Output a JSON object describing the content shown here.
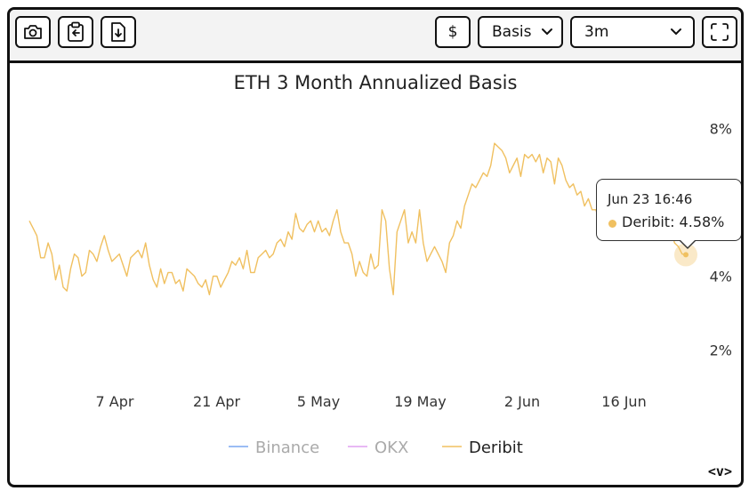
{
  "toolbar": {
    "currency_label": "$",
    "metric_select": "Basis",
    "range_select": "3m"
  },
  "chart_data": {
    "type": "line",
    "title": "ETH 3 Month Annualized Basis",
    "xlabel": "",
    "ylabel": "",
    "x_tick_labels": [
      "7 Apr",
      "21 Apr",
      "5 May",
      "19 May",
      "2 Jun",
      "16 Jun"
    ],
    "y_tick_labels": [
      "8%",
      "4%",
      "2%"
    ],
    "ylim": [
      1.0,
      9.0
    ],
    "series": [
      {
        "name": "Binance",
        "color": "#7aa7f0",
        "visible": false,
        "values": []
      },
      {
        "name": "OKX",
        "color": "#e0a0f0",
        "visible": false,
        "values": []
      },
      {
        "name": "Deribit",
        "color": "#f0c060",
        "visible": true,
        "values": [
          5.5,
          5.3,
          5.1,
          4.5,
          4.5,
          4.9,
          4.6,
          3.9,
          4.3,
          3.7,
          3.6,
          4.2,
          4.6,
          4.5,
          4.0,
          4.1,
          4.7,
          4.6,
          4.4,
          4.8,
          5.1,
          4.7,
          4.4,
          4.5,
          4.6,
          4.3,
          4.0,
          4.5,
          4.6,
          4.7,
          4.5,
          4.9,
          4.3,
          3.9,
          3.7,
          4.2,
          3.8,
          4.1,
          4.1,
          3.8,
          3.9,
          3.6,
          4.2,
          4.1,
          4.0,
          3.8,
          3.7,
          3.9,
          3.5,
          4.0,
          4.0,
          3.7,
          3.9,
          4.1,
          4.4,
          4.3,
          4.5,
          4.2,
          4.7,
          4.1,
          4.1,
          4.5,
          4.6,
          4.7,
          4.5,
          4.6,
          4.9,
          5.0,
          4.8,
          5.2,
          5.0,
          5.7,
          5.3,
          5.2,
          5.4,
          5.5,
          5.2,
          5.5,
          5.2,
          5.3,
          5.1,
          5.5,
          5.8,
          5.2,
          4.9,
          4.9,
          4.6,
          4.0,
          4.4,
          4.1,
          4.0,
          4.6,
          4.2,
          4.3,
          5.8,
          5.5,
          4.2,
          3.5,
          5.2,
          5.5,
          5.8,
          4.9,
          5.2,
          4.9,
          5.8,
          4.9,
          4.4,
          4.6,
          4.8,
          4.6,
          4.4,
          4.1,
          4.9,
          5.1,
          5.5,
          5.3,
          5.9,
          6.2,
          6.5,
          6.4,
          6.6,
          6.8,
          6.7,
          7.0,
          7.6,
          7.5,
          7.4,
          7.2,
          6.8,
          7.0,
          7.2,
          6.7,
          7.3,
          7.2,
          7.3,
          7.1,
          7.3,
          6.8,
          7.2,
          7.1,
          6.5,
          7.2,
          7.0,
          6.6,
          6.4,
          6.5,
          6.2,
          6.3,
          5.9,
          6.1,
          5.8,
          5.8,
          5.5,
          5.8,
          6.0,
          5.8,
          5.9,
          6.0,
          6.2,
          6.4,
          6.2,
          6.4,
          6.6,
          6.0,
          5.7,
          5.9,
          5.8,
          6.2,
          6.4,
          6.3,
          5.6,
          5.3,
          4.9,
          4.8,
          4.6,
          4.58
        ]
      }
    ],
    "grid": false,
    "legend": "bottom",
    "tooltip": {
      "time": "Jun 23 16:46",
      "series": "Deribit",
      "value": "4.58%"
    }
  }
}
